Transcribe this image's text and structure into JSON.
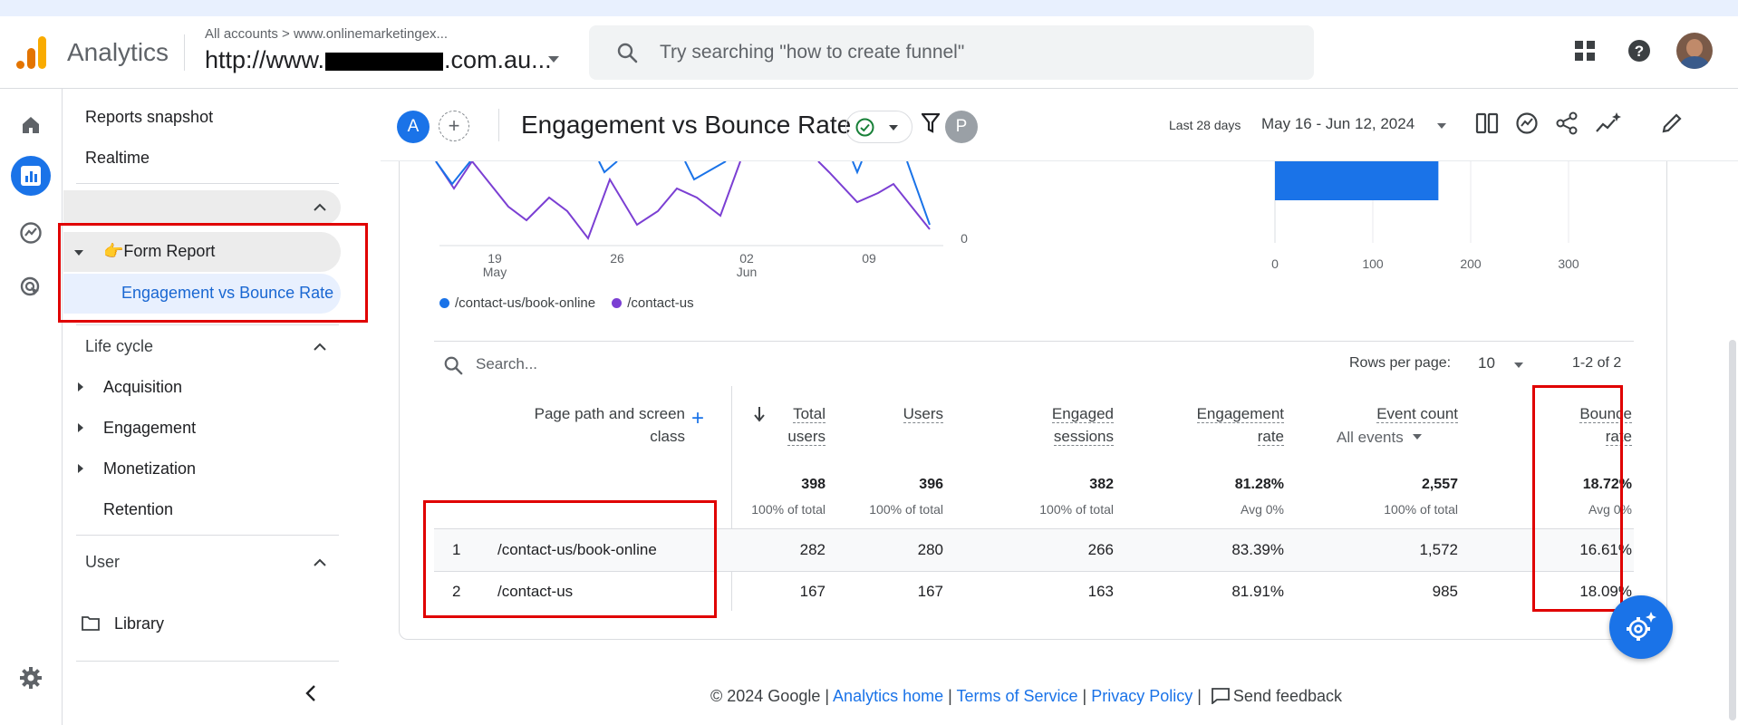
{
  "app": {
    "brand": "Analytics",
    "account_breadcrumb": "All accounts  >  www.onlinemarketingex...",
    "property_prefix": "http://www.",
    "property_suffix": ".com.au...",
    "search_placeholder": "Try searching \"how to create funnel\""
  },
  "sidebar": {
    "top_items": [
      "Reports snapshot",
      "Realtime"
    ],
    "collection": {
      "label": "👉Form Report",
      "active_report": "Engagement vs Bounce Rate"
    },
    "lifecycle": {
      "title": "Life cycle",
      "items": [
        "Acquisition",
        "Engagement",
        "Monetization",
        "Retention"
      ]
    },
    "user_section": "User",
    "library": "Library"
  },
  "header": {
    "comparison_chip": "A",
    "add_comparison": "+",
    "title": "Engagement vs Bounce Rate",
    "filter_chip": "P",
    "date_label": "Last 28 days",
    "date_range": "May 16 - Jun 12, 2024"
  },
  "chart_data": [
    {
      "type": "line",
      "x_ticks": [
        "19\nMay",
        "26",
        "02\nJun",
        "09"
      ],
      "y_tick_visible": "0",
      "series": [
        {
          "name": "/contact-us/book-online",
          "color": "#1a73e8"
        },
        {
          "name": "/contact-us",
          "color": "#7b3fd3"
        }
      ]
    },
    {
      "type": "bar",
      "orientation": "horizontal",
      "x_ticks": [
        "0",
        "100",
        "200",
        "300"
      ],
      "xlim": [
        0,
        300
      ],
      "values": [
        167
      ],
      "color": "#1a73e8"
    }
  ],
  "legend": [
    "/contact-us/book-online",
    "/contact-us"
  ],
  "table": {
    "search_placeholder": "Search...",
    "rows_per_page_label": "Rows per page:",
    "rows_per_page": "10",
    "range": "1-2 of 2",
    "dimension_header": "Page path and screen class",
    "columns": [
      {
        "l1": "Total",
        "l2": "users",
        "total": "398",
        "sub": "100% of total"
      },
      {
        "l1": "Users",
        "l2": "",
        "total": "396",
        "sub": "100% of total"
      },
      {
        "l1": "Engaged",
        "l2": "sessions",
        "total": "382",
        "sub": "100% of total"
      },
      {
        "l1": "Engagement",
        "l2": "rate",
        "total": "81.28%",
        "sub": "Avg 0%"
      },
      {
        "l1": "Event count",
        "l2": "",
        "total": "2,557",
        "sub": "100% of total",
        "selector": "All events"
      },
      {
        "l1": "Bounce",
        "l2": "rate",
        "total": "18.72%",
        "sub": "Avg 0%"
      }
    ],
    "rows": [
      {
        "idx": "1",
        "page": "/contact-us/book-online",
        "vals": [
          "282",
          "280",
          "266",
          "83.39%",
          "1,572",
          "16.61%"
        ]
      },
      {
        "idx": "2",
        "page": "/contact-us",
        "vals": [
          "167",
          "167",
          "163",
          "81.91%",
          "985",
          "18.09%"
        ]
      }
    ]
  },
  "footer": {
    "copyright": "© 2024 Google | ",
    "analytics_home": "Analytics home",
    "sep": " | ",
    "terms": "Terms of Service",
    "privacy": "Privacy Policy",
    "feedback": "Send feedback"
  }
}
